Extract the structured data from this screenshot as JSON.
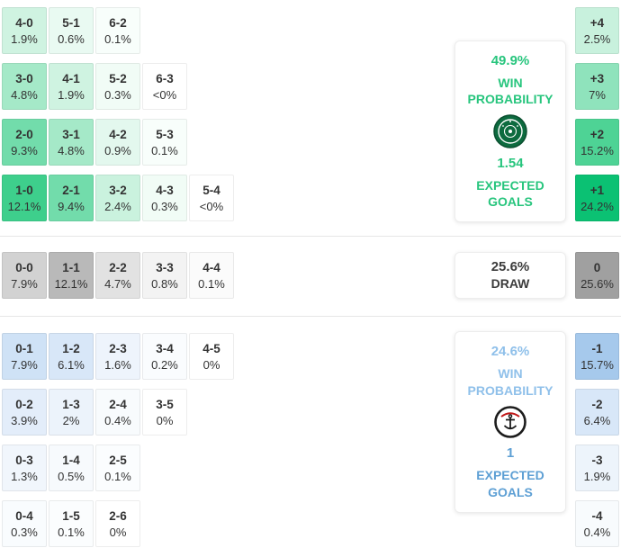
{
  "colors": {
    "home_text": "#27c57d",
    "away_light_text": "#8fc0ea",
    "away_text": "#5d9fd4",
    "draw_text": "#3c3c3c",
    "home_dark_cell": "#0bc173",
    "away_dark_cell": "#a6c9ec",
    "draw_dark_cell": "#a0a0a0"
  },
  "cards": {
    "home": {
      "win_pct": "49.9%",
      "win_label_1": "WIN",
      "win_label_2": "PROBABILITY",
      "xg": "1.54",
      "xg_label_1": "EXPECTED",
      "xg_label_2": "GOALS",
      "crest_icon": "palmeiras-crest-icon"
    },
    "draw": {
      "pct": "25.6%",
      "label": "DRAW"
    },
    "away": {
      "win_pct": "24.6%",
      "win_label_1": "WIN",
      "win_label_2": "PROBABILITY",
      "xg": "1",
      "xg_label_1": "EXPECTED",
      "xg_label_2": "GOALS",
      "crest_icon": "corinthians-crest-icon"
    }
  },
  "chart_data": {
    "type": "heatmap",
    "title": "Correct score probability matrix with goal-difference distribution",
    "legend_position": "none",
    "home_win_scores": [
      [
        {
          "score": "4-0",
          "pct": "1.9%",
          "bg": "#cff3e1"
        },
        {
          "score": "5-1",
          "pct": "0.6%",
          "bg": "#e9faf2"
        },
        {
          "score": "6-2",
          "pct": "0.1%",
          "bg": "#f8fefb"
        }
      ],
      [
        {
          "score": "3-0",
          "pct": "4.8%",
          "bg": "#a5e9c8"
        },
        {
          "score": "4-1",
          "pct": "1.9%",
          "bg": "#cff3e1"
        },
        {
          "score": "5-2",
          "pct": "0.3%",
          "bg": "#f1fcf6"
        },
        {
          "score": "6-3",
          "pct": "<0%",
          "bg": "#ffffff"
        }
      ],
      [
        {
          "score": "2-0",
          "pct": "9.3%",
          "bg": "#72dcab"
        },
        {
          "score": "3-1",
          "pct": "4.8%",
          "bg": "#a5e9c8"
        },
        {
          "score": "4-2",
          "pct": "0.9%",
          "bg": "#e3f8ee"
        },
        {
          "score": "5-3",
          "pct": "0.1%",
          "bg": "#f8fefb"
        }
      ],
      [
        {
          "score": "1-0",
          "pct": "12.1%",
          "bg": "#3ecf8c"
        },
        {
          "score": "2-1",
          "pct": "9.4%",
          "bg": "#72dcab"
        },
        {
          "score": "3-2",
          "pct": "2.4%",
          "bg": "#caf2de"
        },
        {
          "score": "4-3",
          "pct": "0.3%",
          "bg": "#f1fcf6"
        },
        {
          "score": "5-4",
          "pct": "<0%",
          "bg": "#ffffff"
        }
      ]
    ],
    "draw_scores": [
      {
        "score": "0-0",
        "pct": "7.9%",
        "bg": "#d2d2d2"
      },
      {
        "score": "1-1",
        "pct": "12.1%",
        "bg": "#b9b9b9"
      },
      {
        "score": "2-2",
        "pct": "4.7%",
        "bg": "#e2e2e2"
      },
      {
        "score": "3-3",
        "pct": "0.8%",
        "bg": "#f3f3f3"
      },
      {
        "score": "4-4",
        "pct": "0.1%",
        "bg": "#fbfbfb"
      }
    ],
    "away_win_scores": [
      [
        {
          "score": "0-1",
          "pct": "7.9%",
          "bg": "#cfe2f6"
        },
        {
          "score": "1-2",
          "pct": "6.1%",
          "bg": "#d8e7f8"
        },
        {
          "score": "2-3",
          "pct": "1.6%",
          "bg": "#eef4fc"
        },
        {
          "score": "3-4",
          "pct": "0.2%",
          "bg": "#fafcfe"
        },
        {
          "score": "4-5",
          "pct": "0%",
          "bg": "#ffffff"
        }
      ],
      [
        {
          "score": "0-2",
          "pct": "3.9%",
          "bg": "#e3edfa"
        },
        {
          "score": "1-3",
          "pct": "2%",
          "bg": "#ecf3fb"
        },
        {
          "score": "2-4",
          "pct": "0.4%",
          "bg": "#f8fbfd"
        },
        {
          "score": "3-5",
          "pct": "0%",
          "bg": "#ffffff"
        }
      ],
      [
        {
          "score": "0-3",
          "pct": "1.3%",
          "bg": "#f1f6fc"
        },
        {
          "score": "1-4",
          "pct": "0.5%",
          "bg": "#f7fafd"
        },
        {
          "score": "2-5",
          "pct": "0.1%",
          "bg": "#fbfdfe"
        }
      ],
      [
        {
          "score": "0-4",
          "pct": "0.3%",
          "bg": "#f9fcfe"
        },
        {
          "score": "1-5",
          "pct": "0.1%",
          "bg": "#fbfdfe"
        },
        {
          "score": "2-6",
          "pct": "0%",
          "bg": "#ffffff"
        }
      ]
    ],
    "goal_difference": [
      {
        "diff": "+4",
        "pct": "2.5%",
        "bg": "#c8f1dd"
      },
      {
        "diff": "+3",
        "pct": "7%",
        "bg": "#8fe3bc"
      },
      {
        "diff": "+2",
        "pct": "15.2%",
        "bg": "#4ed395"
      },
      {
        "diff": "+1",
        "pct": "24.2%",
        "bg": "#0bc173"
      },
      {
        "diff": "0",
        "pct": "25.6%",
        "bg": "#a0a0a0"
      },
      {
        "diff": "-1",
        "pct": "15.7%",
        "bg": "#a6c9ec"
      },
      {
        "diff": "-2",
        "pct": "6.4%",
        "bg": "#d8e7f8"
      },
      {
        "diff": "-3",
        "pct": "1.9%",
        "bg": "#edf4fb"
      },
      {
        "diff": "-4",
        "pct": "0.4%",
        "bg": "#f8fbfd"
      }
    ]
  }
}
